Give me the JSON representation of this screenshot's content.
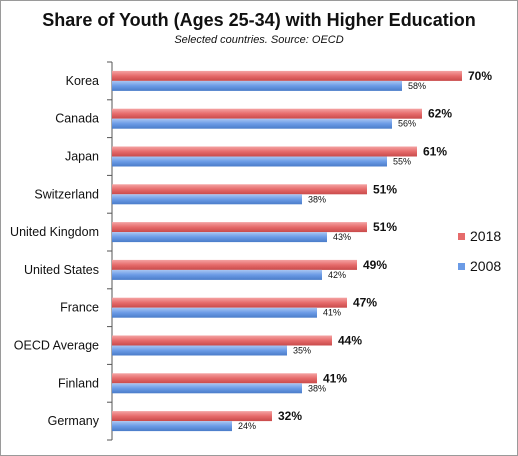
{
  "chart_data": {
    "type": "bar",
    "orientation": "horizontal",
    "title": "Share of Youth (Ages 25-34) with Higher Education",
    "subtitle": "Selected countries. Source: OECD",
    "categories": [
      "Korea",
      "Canada",
      "Japan",
      "Switzerland",
      "United Kingdom",
      "United States",
      "France",
      "OECD Average",
      "Finland",
      "Germany"
    ],
    "series": [
      {
        "name": "2018",
        "color": "#e66b6b",
        "values": [
          70,
          62,
          61,
          51,
          51,
          49,
          47,
          44,
          41,
          32
        ],
        "labels": [
          "70%",
          "62%",
          "61%",
          "51%",
          "51%",
          "49%",
          "47%",
          "44%",
          "41%",
          "32%"
        ]
      },
      {
        "name": "2008",
        "color": "#6b9be6",
        "values": [
          58,
          56,
          55,
          38,
          43,
          42,
          41,
          35,
          38,
          24
        ],
        "labels": [
          "58%",
          "56%",
          "55%",
          "38%",
          "43%",
          "42%",
          "41%",
          "35%",
          "38%",
          "24%"
        ]
      }
    ],
    "xlim": [
      0,
      80
    ],
    "legend_position": "right",
    "grid": false
  }
}
